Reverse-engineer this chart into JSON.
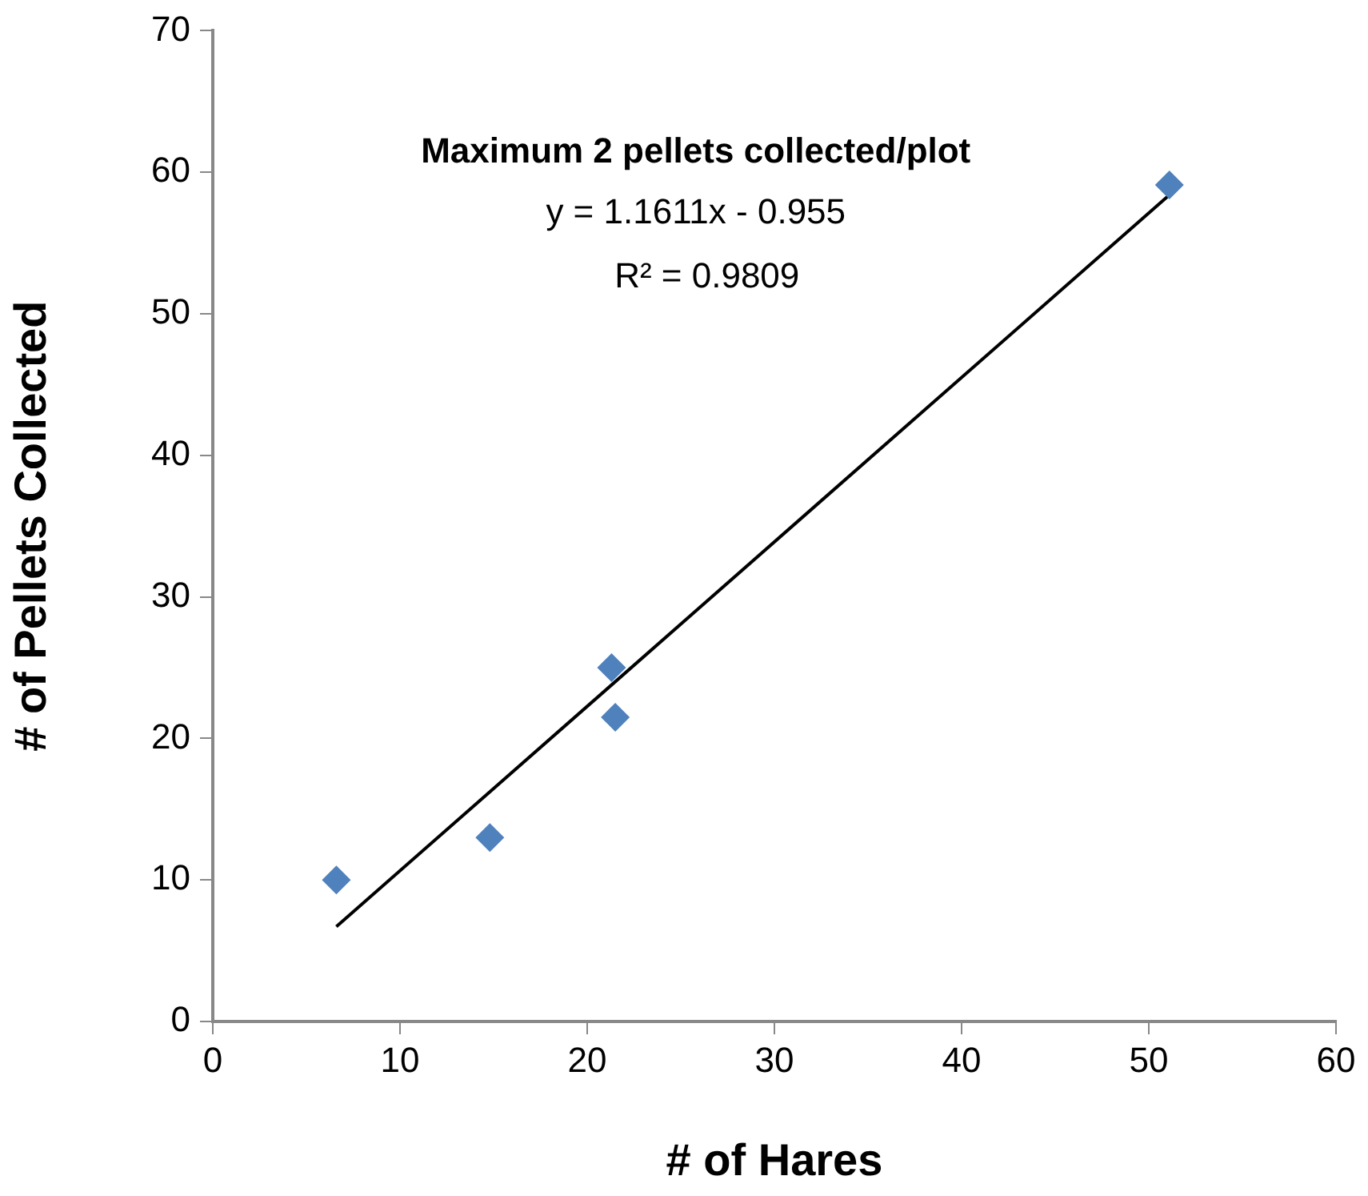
{
  "chart_data": {
    "type": "scatter",
    "title": "Maximum 2 pellets collected/plot",
    "xlabel": "# of Hares",
    "ylabel": "# of Pellets Collected",
    "x": [
      6.6,
      14.8,
      21.3,
      21.5,
      51.1
    ],
    "series": [
      {
        "color": "#4f81bd",
        "marker": "diamond",
        "values": [
          10,
          13,
          25,
          21.5,
          59.1
        ]
      },
      {
        "type": "line",
        "color": "#000000",
        "marker": "none",
        "x": [
          6.6,
          51.1
        ],
        "values": [
          6.7,
          58.4
        ]
      }
    ],
    "annotations": [
      "y = 1.1611x - 0.955",
      "R² = 0.9809"
    ],
    "xlim": [
      0,
      60
    ],
    "xticks": [
      0,
      10,
      20,
      30,
      40,
      50,
      60
    ],
    "ylim": [
      0,
      70
    ],
    "yticks": [
      0,
      10,
      20,
      30,
      40,
      50,
      60,
      70
    ],
    "grid": false,
    "legend": false
  }
}
